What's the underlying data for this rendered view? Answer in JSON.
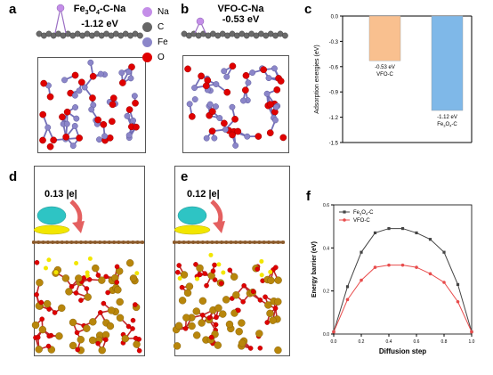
{
  "panels": {
    "a": {
      "letter": "a",
      "title": "Fe3O4-C-Na",
      "energy": "-1.12 eV"
    },
    "b": {
      "letter": "b",
      "title": "VFO-C-Na",
      "energy": "-0.53 eV"
    },
    "c": {
      "letter": "c"
    },
    "d": {
      "letter": "d",
      "charge": "0.13 |e|"
    },
    "e": {
      "letter": "e",
      "charge": "0.12 |e|"
    },
    "f": {
      "letter": "f"
    }
  },
  "legend": [
    {
      "label": "Na",
      "color": "#c48ee8"
    },
    {
      "label": "C",
      "color": "#666666"
    },
    {
      "label": "Fe",
      "color": "#8b86c9"
    },
    {
      "label": "O",
      "color": "#e00000"
    }
  ],
  "chart_data": [
    {
      "type": "bar",
      "panel": "c",
      "ylabel": "Adsorption energies (eV)",
      "ylim": [
        -1.5,
        0.0
      ],
      "yticks": [
        "0.0",
        "-0.3",
        "-0.6",
        "-0.9",
        "-1.2",
        "-1.5"
      ],
      "categories": [
        "VFO-C",
        "Fe3O4-C"
      ],
      "values": [
        -0.53,
        -1.12
      ],
      "bar_labels": [
        "-0.53 eV",
        "-1.12 eV"
      ],
      "colors": [
        "#f9c08f",
        "#7fb8e8"
      ]
    },
    {
      "type": "line",
      "panel": "f",
      "xlabel": "Diffusion step",
      "ylabel": "Energy barrier (eV)",
      "xlim": [
        0.0,
        1.0
      ],
      "ylim": [
        0.0,
        0.6
      ],
      "xticks": [
        "0.0",
        "0.2",
        "0.4",
        "0.6",
        "0.8",
        "1.0"
      ],
      "yticks": [
        "0.0",
        "0.2",
        "0.4",
        "0.6"
      ],
      "legend_position": "top-left",
      "x": [
        0.0,
        0.1,
        0.2,
        0.3,
        0.4,
        0.5,
        0.6,
        0.7,
        0.8,
        0.9,
        1.0
      ],
      "series": [
        {
          "name": "Fe3O4-C",
          "color": "#444444",
          "values": [
            0.01,
            0.22,
            0.38,
            0.47,
            0.49,
            0.49,
            0.47,
            0.44,
            0.38,
            0.23,
            0.01
          ]
        },
        {
          "name": "VFO-C",
          "color": "#e84c4c",
          "values": [
            0.01,
            0.16,
            0.25,
            0.31,
            0.32,
            0.32,
            0.31,
            0.28,
            0.24,
            0.15,
            0.01
          ]
        }
      ]
    }
  ]
}
